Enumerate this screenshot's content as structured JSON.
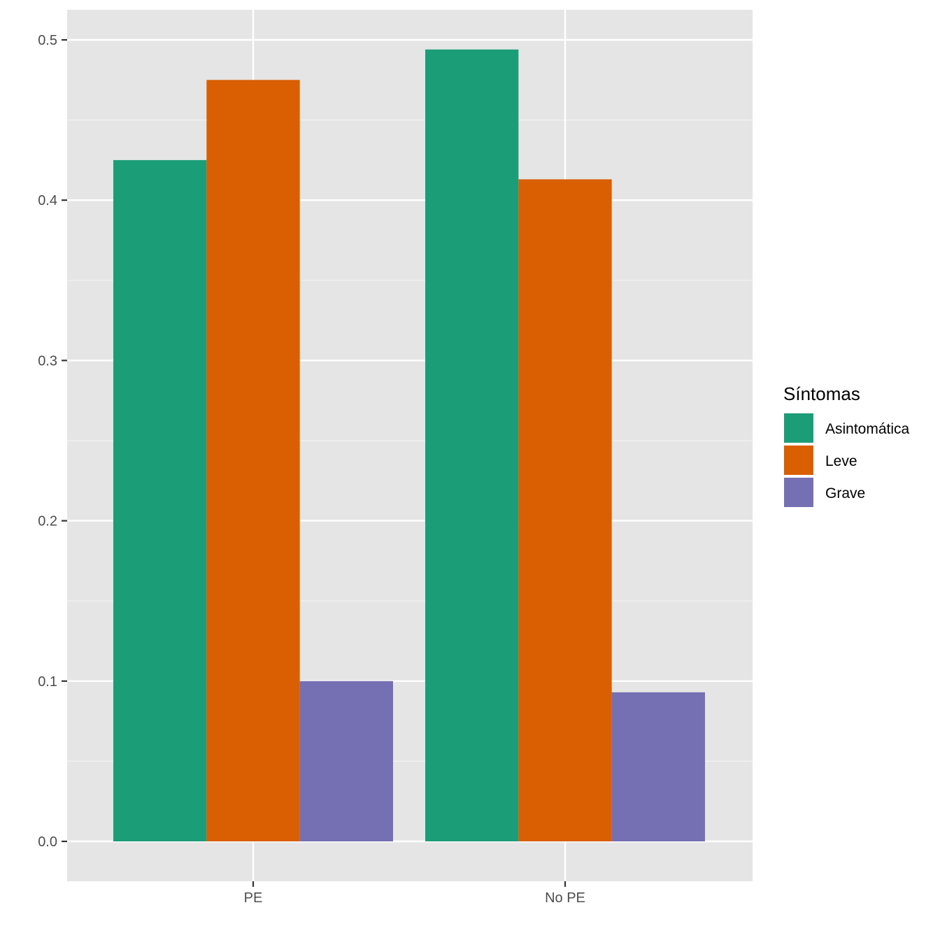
{
  "chart_data": {
    "type": "bar",
    "categories": [
      "PE",
      "No PE"
    ],
    "series": [
      {
        "name": "Asintomática",
        "values": [
          0.425,
          0.494
        ],
        "color": "#1b9e77"
      },
      {
        "name": "Leve",
        "values": [
          0.475,
          0.413
        ],
        "color": "#d95f02"
      },
      {
        "name": "Grave",
        "values": [
          0.1,
          0.093
        ],
        "color": "#7570b3"
      }
    ],
    "ylim": [
      -0.025,
      0.52
    ],
    "yticks": [
      0.0,
      0.1,
      0.2,
      0.3,
      0.4,
      0.5
    ],
    "ytick_labels": [
      "0.0",
      "0.1",
      "0.2",
      "0.3",
      "0.4",
      "0.5"
    ],
    "xlabel": "",
    "ylabel": "",
    "grid": true,
    "legend": {
      "title": "Síntomas",
      "position": "right"
    },
    "panel_background": "#e5e5e5"
  }
}
